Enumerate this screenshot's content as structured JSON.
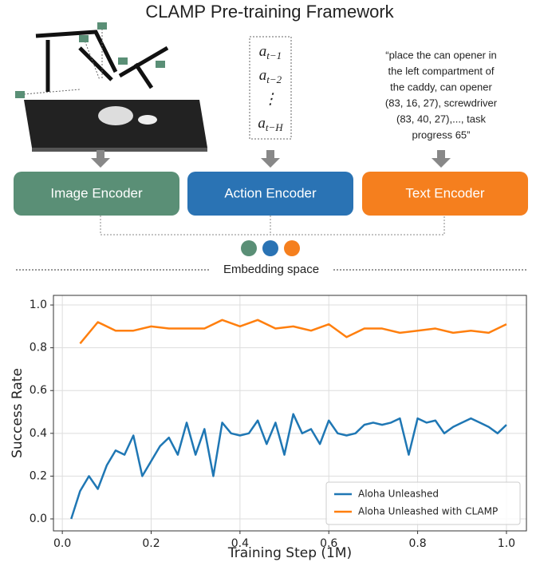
{
  "diagram": {
    "title": "CLAMP Pre-training Framework",
    "actions": [
      {
        "base": "a",
        "sub": "t−1"
      },
      {
        "base": "a",
        "sub": "t−2"
      },
      {
        "base": "⋮",
        "sub": ""
      },
      {
        "base": "a",
        "sub": "t−H"
      }
    ],
    "text_prompt": [
      "“place the can opener in",
      "the left compartment of",
      "the caddy, can opener",
      "(83, 16, 27), screwdriver",
      "(83, 40, 27),..., task",
      "progress 65”"
    ],
    "encoders": [
      "Image Encoder",
      "Action Encoder",
      "Text Encoder"
    ],
    "embedding_label": "Embedding space"
  },
  "chart_data": {
    "type": "line",
    "xlabel": "Training Step (1M)",
    "ylabel": "Success Rate",
    "xlim": [
      -0.02,
      1.045
    ],
    "ylim": [
      -0.056,
      1.045
    ],
    "xticks": [
      {
        "value": 0,
        "label": "0.0"
      },
      0.2,
      0.4,
      0.6,
      0.8,
      {
        "value": 1,
        "label": "1.0"
      }
    ],
    "yticks": [
      {
        "value": 0,
        "label": "0.0"
      },
      0.2,
      0.4,
      0.6,
      0.8,
      {
        "value": 1,
        "label": "1.0"
      }
    ],
    "grid": true,
    "legend": "lower right",
    "series": [
      {
        "name": "Aloha Unleashed",
        "color": "#1f77b4",
        "x": [
          0.02,
          0.04,
          0.06,
          0.08,
          0.1,
          0.12,
          0.14,
          0.16,
          0.18,
          0.2,
          0.22,
          0.24,
          0.26,
          0.28,
          0.3,
          0.32,
          0.34,
          0.36,
          0.38,
          0.4,
          0.42,
          0.44,
          0.46,
          0.48,
          0.5,
          0.52,
          0.54,
          0.56,
          0.58,
          0.6,
          0.62,
          0.64,
          0.66,
          0.68,
          0.7,
          0.72,
          0.74,
          0.76,
          0.78,
          0.8,
          0.82,
          0.84,
          0.86,
          0.88,
          0.9,
          0.92,
          0.94,
          0.96,
          0.98,
          1.0
        ],
        "values": [
          0,
          0.13,
          0.2,
          0.14,
          0.25,
          0.32,
          0.3,
          0.39,
          0.2,
          0.27,
          0.34,
          0.38,
          0.3,
          0.45,
          0.3,
          0.42,
          0.2,
          0.45,
          0.4,
          0.39,
          0.4,
          0.46,
          0.35,
          0.45,
          0.3,
          0.49,
          0.4,
          0.42,
          0.35,
          0.46,
          0.4,
          0.39,
          0.4,
          0.44,
          0.45,
          0.44,
          0.45,
          0.47,
          0.3,
          0.47,
          0.45,
          0.46,
          0.4,
          0.43,
          0.45,
          0.47,
          0.45,
          0.43,
          0.4,
          0.44
        ]
      },
      {
        "name": "Aloha Unleashed with CLAMP",
        "color": "#ff7f0e",
        "x": [
          0.04,
          0.08,
          0.12,
          0.16,
          0.2,
          0.24,
          0.28,
          0.32,
          0.36,
          0.4,
          0.44,
          0.48,
          0.52,
          0.56,
          0.6,
          0.64,
          0.68,
          0.72,
          0.76,
          0.8,
          0.84,
          0.88,
          0.92,
          0.96,
          1.0
        ],
        "values": [
          0.82,
          0.92,
          0.88,
          0.88,
          0.9,
          0.89,
          0.89,
          0.89,
          0.93,
          0.9,
          0.93,
          0.89,
          0.9,
          0.88,
          0.91,
          0.85,
          0.89,
          0.89,
          0.87,
          0.88,
          0.89,
          0.87,
          0.88,
          0.87,
          0.91
        ]
      }
    ]
  }
}
